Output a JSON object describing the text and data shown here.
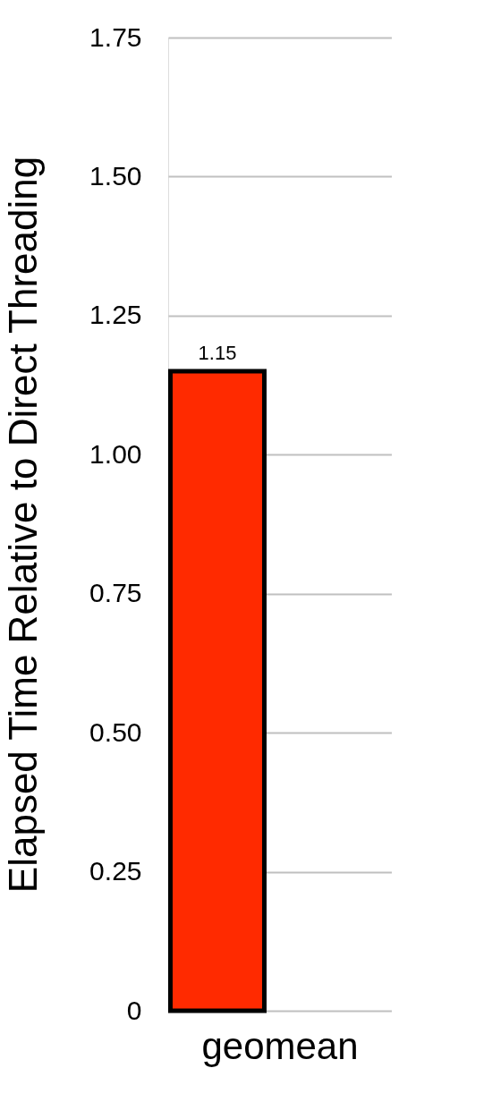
{
  "chart_data": {
    "type": "bar",
    "ylabel": "Elapsed Time Relative to Direct Threading",
    "categories": [
      "geomean"
    ],
    "values": [
      1.15
    ],
    "color": "#ff2a00",
    "data_labels": true,
    "ylim": [
      0,
      1.75
    ],
    "yticks": [
      0,
      0.25,
      {
        "value": 0.5,
        "label": "0.50"
      },
      0.75,
      {
        "value": 1,
        "label": "1.00"
      },
      1.25,
      {
        "value": 1.5,
        "label": "1.50"
      },
      1.75
    ],
    "grid": "y"
  }
}
